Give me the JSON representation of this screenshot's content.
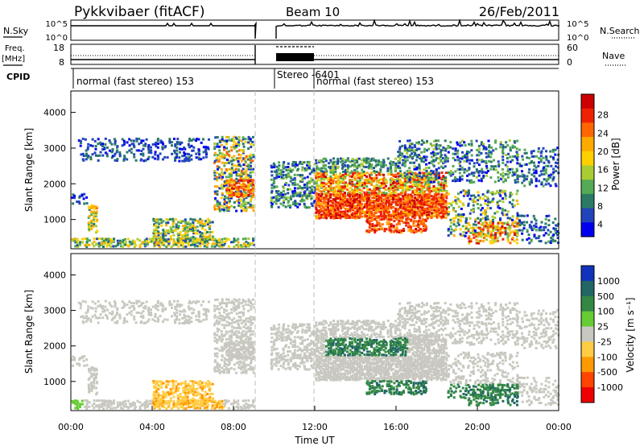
{
  "header": {
    "title": "Pykkvibaer (fitACF)",
    "beam": "Beam 10",
    "date": "26/Feb/2011"
  },
  "panels": {
    "nsky_label": "N.Sky",
    "nsearch_label": "N.Search",
    "nsky_ticks": [
      "10^5",
      "10^0"
    ],
    "nsky_right_ticks": [
      "10^5",
      "10^0"
    ],
    "freq_label_line1": "Freq.",
    "freq_label_line2": "[MHz]",
    "freq_ticks": [
      "18",
      "8"
    ],
    "nave_label": "Nave",
    "nave_ticks": [
      "60",
      "0"
    ],
    "cpid_label": "CPID",
    "cpid_segments": [
      {
        "label": "normal (fast stereo) 153",
        "start": 0,
        "end": 9
      },
      {
        "label": "Stereo",
        "start": 10,
        "end": 12
      },
      {
        "label": "-6401",
        "start": 10,
        "end": 12
      },
      {
        "label": "normal (fast stereo) 153",
        "start": 12,
        "end": 24
      }
    ]
  },
  "axes": {
    "x_ticks": [
      "00:00",
      "04:00",
      "08:00",
      "12:00",
      "16:00",
      "20:00",
      "00:00"
    ],
    "x_label": "Time UT",
    "y_label": "Slant Range [km]",
    "y_ticks": [
      "4000",
      "3000",
      "2000",
      "1000"
    ]
  },
  "chart_data": [
    {
      "type": "heatmap",
      "name": "power",
      "x_range_hours": [
        0,
        24
      ],
      "y_range_km": [
        180,
        4600
      ],
      "colorbar_label": "Power [dB]",
      "colorbar_ticks": [
        "28",
        "24",
        "20",
        "16",
        "12",
        "8",
        "4"
      ],
      "colors": [
        "#0000ee",
        "#2244bb",
        "#2a7a66",
        "#55aa55",
        "#aacc33",
        "#ffd000",
        "#ffaa00",
        "#ff6600",
        "#ee2200",
        "#cc0000"
      ],
      "data_gap_hours": [
        9.0,
        9.8
      ]
    },
    {
      "type": "heatmap",
      "name": "velocity",
      "x_range_hours": [
        0,
        24
      ],
      "y_range_km": [
        180,
        4600
      ],
      "colorbar_label": "Velocity [m s⁻¹]",
      "colorbar_ticks": [
        "1000",
        "500",
        "100",
        "25",
        "-25",
        "-100",
        "-500",
        "-1000"
      ],
      "colors": [
        "#1133bb",
        "#226666",
        "#338844",
        "#66cc33",
        "#c8c8c0",
        "#ffcc44",
        "#ff9900",
        "#ff4400",
        "#ee0000"
      ],
      "data_gap_hours": [
        9.0,
        9.8
      ]
    }
  ]
}
